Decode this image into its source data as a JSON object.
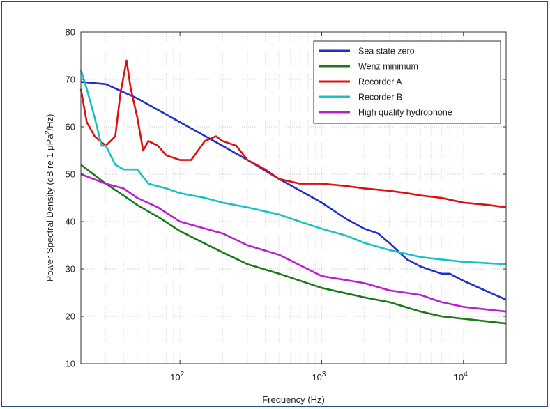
{
  "chart_data": {
    "type": "line",
    "title": "",
    "xlabel": "Frequency (Hz)",
    "ylabel": "Power Spectral Density (dB re 1 μPa²/Hz)",
    "ylabel_parts": {
      "pre": "Power Spectral Density (dB re 1 μPa",
      "sup": "2",
      "post": "/Hz)"
    },
    "x_scale": "log",
    "xlim": [
      20,
      20000
    ],
    "ylim": [
      10,
      80
    ],
    "x_ticks": [
      {
        "value": 100,
        "base": "10",
        "exp": "2"
      },
      {
        "value": 1000,
        "base": "10",
        "exp": "3"
      },
      {
        "value": 10000,
        "base": "10",
        "exp": "4"
      }
    ],
    "y_ticks": [
      10,
      20,
      30,
      40,
      50,
      60,
      70,
      80
    ],
    "grid": true,
    "legend_position": "top-right",
    "series": [
      {
        "name": "Sea state zero",
        "color": "#1f2ed1",
        "x": [
          20,
          30,
          50,
          100,
          200,
          300,
          500,
          1000,
          1500,
          2000,
          2500,
          3000,
          4000,
          5000,
          7000,
          8000,
          10000,
          20000
        ],
        "y": [
          69.5,
          69,
          66,
          61,
          56,
          53,
          49,
          44,
          40.5,
          38.5,
          37.5,
          35.5,
          32,
          30.5,
          29,
          29,
          27.5,
          23.5
        ]
      },
      {
        "name": "Wenz minimum",
        "color": "#1a7a1a",
        "x": [
          20,
          30,
          40,
          50,
          70,
          100,
          200,
          300,
          500,
          1000,
          2000,
          3000,
          5000,
          7000,
          10000,
          20000
        ],
        "y": [
          52,
          48,
          45.5,
          43.5,
          41,
          38,
          33.5,
          31,
          29,
          26,
          24,
          23,
          21,
          20,
          19.5,
          18.5
        ]
      },
      {
        "name": "Recorder A",
        "color": "#e01010",
        "x": [
          20,
          22,
          25,
          30,
          35,
          38,
          42,
          45,
          50,
          55,
          60,
          70,
          80,
          100,
          120,
          150,
          180,
          200,
          250,
          300,
          400,
          500,
          700,
          1000,
          1500,
          2000,
          3000,
          4000,
          5000,
          7000,
          10000,
          15000,
          20000
        ],
        "y": [
          68,
          61,
          58,
          56,
          58,
          67,
          74,
          68,
          62,
          55,
          57,
          56,
          54,
          53,
          53,
          57,
          58,
          57,
          56,
          53,
          51,
          49,
          48,
          48,
          47.5,
          47,
          46.5,
          46,
          45.5,
          45,
          44,
          43.5,
          43
        ]
      },
      {
        "name": "Recorder B",
        "color": "#18c2c4",
        "x": [
          20,
          22,
          25,
          28,
          30,
          35,
          40,
          45,
          50,
          60,
          80,
          100,
          150,
          200,
          300,
          500,
          700,
          1000,
          1500,
          2000,
          3000,
          5000,
          7000,
          10000,
          20000
        ],
        "y": [
          72,
          68,
          62,
          56,
          56,
          52,
          51,
          51,
          51,
          48,
          47,
          46,
          45,
          44,
          43,
          41.5,
          40,
          38.5,
          37,
          35.5,
          34,
          32.5,
          32,
          31.5,
          31
        ]
      },
      {
        "name": "High quality hydrophone",
        "color": "#b81fd1",
        "x": [
          20,
          30,
          40,
          50,
          70,
          100,
          200,
          300,
          500,
          1000,
          2000,
          3000,
          5000,
          7000,
          10000,
          20000
        ],
        "y": [
          50,
          48,
          47,
          45,
          43,
          40,
          37.5,
          35,
          33,
          28.5,
          27,
          25.5,
          24.5,
          23,
          22,
          21
        ]
      }
    ]
  }
}
